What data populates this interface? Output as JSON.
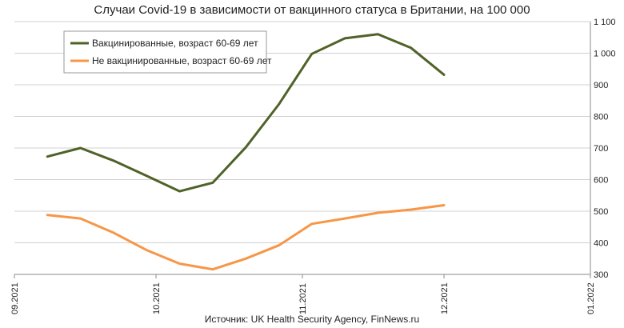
{
  "chart_data": {
    "type": "line",
    "title": "Случаи Covid-19 в зависимости от вакцинного статуса в Британии, на 100 000",
    "source": "Источник: UK Health Security Agency, FinNews.ru",
    "x_tick_labels": [
      "09.2021",
      "10.2021",
      "11.2021",
      "12.2021",
      "01.2022"
    ],
    "y_tick_labels": [
      "300",
      "400",
      "500",
      "600",
      "700",
      "800",
      "900",
      "1 000",
      "1 100"
    ],
    "ylim": [
      300,
      1100
    ],
    "xlim": [
      "2021-09-01",
      "2022-01-01"
    ],
    "y_axis_position": "right",
    "grid": "horizontal",
    "legend_position": "top-left",
    "series": [
      {
        "name": "Вакцинированные, возраст 60-69 лет",
        "color": "#4f6228",
        "x": [
          "2021-09-08",
          "2021-09-15",
          "2021-09-22",
          "2021-09-29",
          "2021-10-06",
          "2021-10-13",
          "2021-10-20",
          "2021-10-27",
          "2021-11-03",
          "2021-11-10",
          "2021-11-17",
          "2021-11-24",
          "2021-12-01"
        ],
        "y": [
          673,
          700,
          660,
          612,
          563,
          590,
          702,
          838,
          998,
          1047,
          1060,
          1017,
          932
        ]
      },
      {
        "name": "Не вакцинированные, возраст 60-69 лет",
        "color": "#f79646",
        "x": [
          "2021-09-08",
          "2021-09-15",
          "2021-09-22",
          "2021-09-29",
          "2021-10-06",
          "2021-10-13",
          "2021-10-20",
          "2021-10-27",
          "2021-11-03",
          "2021-11-10",
          "2021-11-17",
          "2021-11-24",
          "2021-12-01"
        ],
        "y": [
          488,
          477,
          432,
          377,
          334,
          316,
          350,
          392,
          460,
          477,
          495,
          505,
          519
        ]
      }
    ]
  }
}
